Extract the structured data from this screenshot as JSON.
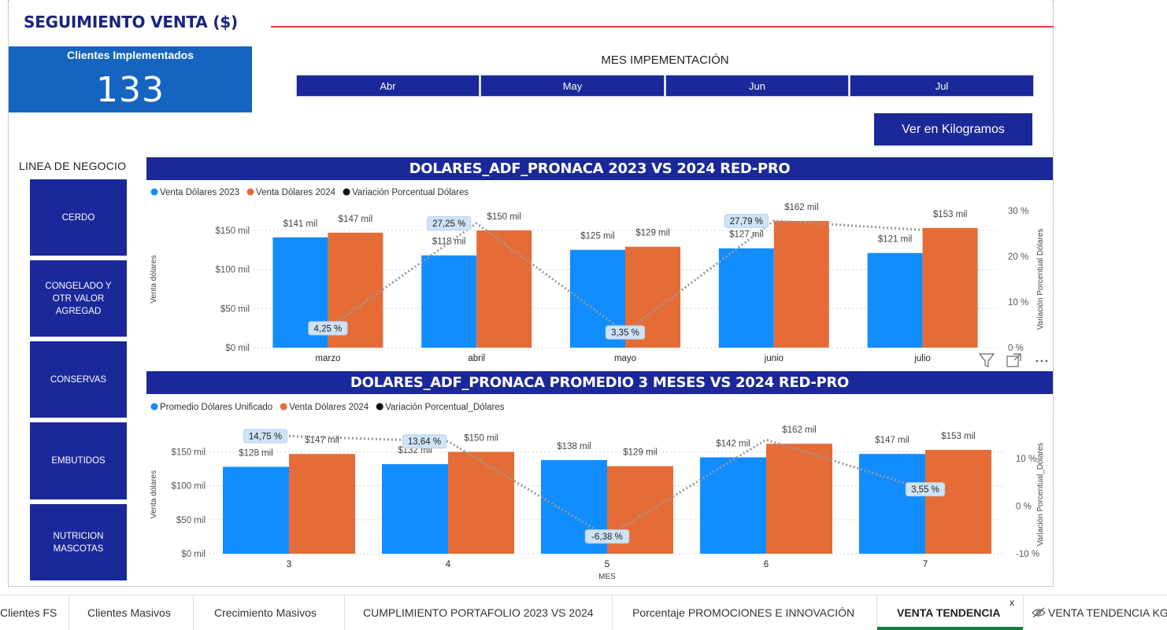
{
  "page": {
    "title": "SEGUIMIENTO VENTA ($)"
  },
  "kpi": {
    "label": "Clientes Implementados",
    "value": "133"
  },
  "month_slicer": {
    "title": "MES IMPEMENTACIÓN",
    "options": [
      "Abr",
      "May",
      "Jun",
      "Jul"
    ]
  },
  "kg_button": {
    "label": "Ver en Kilogramos"
  },
  "business_line": {
    "title": "LINEA DE NEGOCIO",
    "items": [
      "CERDO",
      "CONGELADO Y\nOTR VALOR\nAGREGAD",
      "CONSERVAS",
      "EMBUTIDOS",
      "NUTRICION\nMASCOTAS"
    ]
  },
  "colors": {
    "navy": "#1a2899",
    "blue_series": "#118dff",
    "orange_series": "#e66c37",
    "line_series": "#999999",
    "title_rule": "#e53935",
    "kpi_bg": "#1565c0"
  },
  "visual_header_icons": [
    "filter-icon",
    "focus-mode-icon",
    "more-options-icon"
  ],
  "chart_data": [
    {
      "type": "bar",
      "title": "DOLARES_ADF_PRONACA 2023 VS 2024 RED-PRO",
      "legend": [
        "Venta Dólares 2023",
        "Venta Dólares 2024",
        "Variación Porcentual Dólares"
      ],
      "legend_position": "top-left",
      "categories": [
        "marzo",
        "abril",
        "mayo",
        "junio",
        "julio"
      ],
      "xlabel": "",
      "ylabel": "Venta dólares",
      "y2label": "Variación Porcentual Dólares",
      "y_ticks": [
        "$0 mil",
        "$50 mil",
        "$100 mil",
        "$150 mil"
      ],
      "y2_ticks": [
        "0 %",
        "10 %",
        "20 %",
        "30 %"
      ],
      "ylim": [
        0,
        175
      ],
      "y2lim": [
        0,
        30
      ],
      "series": [
        {
          "name": "Venta Dólares 2023",
          "values": [
            141,
            118,
            125,
            127,
            121
          ],
          "labels": [
            "$141 mil",
            "$118 mil",
            "$125 mil",
            "$127 mil",
            "$121 mil"
          ]
        },
        {
          "name": "Venta Dólares 2024",
          "values": [
            147,
            150,
            129,
            162,
            153
          ],
          "labels": [
            "$147 mil",
            "$150 mil",
            "$129 mil",
            "$162 mil",
            "$153 mil"
          ]
        },
        {
          "name": "Variación Porcentual Dólares",
          "axis": "secondary",
          "type": "line",
          "values": [
            4.25,
            27.25,
            3.35,
            27.79,
            25.8
          ],
          "labels": [
            "4,25 %",
            "27,25 %",
            "3,35 %",
            "27,79 %",
            ""
          ]
        }
      ],
      "grid": true
    },
    {
      "type": "bar",
      "title": "DOLARES_ADF_PRONACA PROMEDIO 3 MESES VS 2024 RED-PRO",
      "legend": [
        "Promedio Dólares Unificado",
        "Venta Dólares 2024",
        "Variación Porcentual_Dólares"
      ],
      "legend_position": "top-left",
      "categories": [
        "3",
        "4",
        "5",
        "6",
        "7"
      ],
      "xlabel": "MES",
      "ylabel": "Venta dólares",
      "y2label": "Variación Porcentual_Dólares",
      "y_ticks": [
        "$0 mil",
        "$50 mil",
        "$100 mil",
        "$150 mil"
      ],
      "y2_ticks": [
        "-10 %",
        "0 %",
        "10 %"
      ],
      "ylim": [
        0,
        175
      ],
      "y2lim": [
        -10,
        15
      ],
      "series": [
        {
          "name": "Promedio Dólares Unificado",
          "values": [
            128,
            132,
            138,
            142,
            147
          ],
          "labels": [
            "$128 mil",
            "$132 mil",
            "$138 mil",
            "$142 mil",
            "$147 mil"
          ]
        },
        {
          "name": "Venta Dólares 2024",
          "values": [
            147,
            150,
            129,
            162,
            153
          ],
          "labels": [
            "$147 mil",
            "$150 mil",
            "$129 mil",
            "$162 mil",
            "$153 mil"
          ]
        },
        {
          "name": "Variación Porcentual_Dólares",
          "axis": "secondary",
          "type": "line",
          "values": [
            14.75,
            13.64,
            -6.38,
            14.0,
            3.55
          ],
          "labels": [
            "14,75 %",
            "13,64 %",
            "-6,38 %",
            "",
            "3,55 %"
          ]
        }
      ],
      "grid": true
    }
  ],
  "tabs": [
    {
      "label": "Clientes FS"
    },
    {
      "label": "Clientes Masivos"
    },
    {
      "label": "Crecimiento Masivos"
    },
    {
      "label": "CUMPLIMIENTO PORTAFOLIO 2023 VS 2024"
    },
    {
      "label": "Porcentaje PROMOCIONES E INNOVACIÓN"
    },
    {
      "label": "VENTA TENDENCIA",
      "active": true,
      "close_glyph": "x"
    },
    {
      "label": "VENTA TENDENCIA KG",
      "hidden": true
    }
  ]
}
